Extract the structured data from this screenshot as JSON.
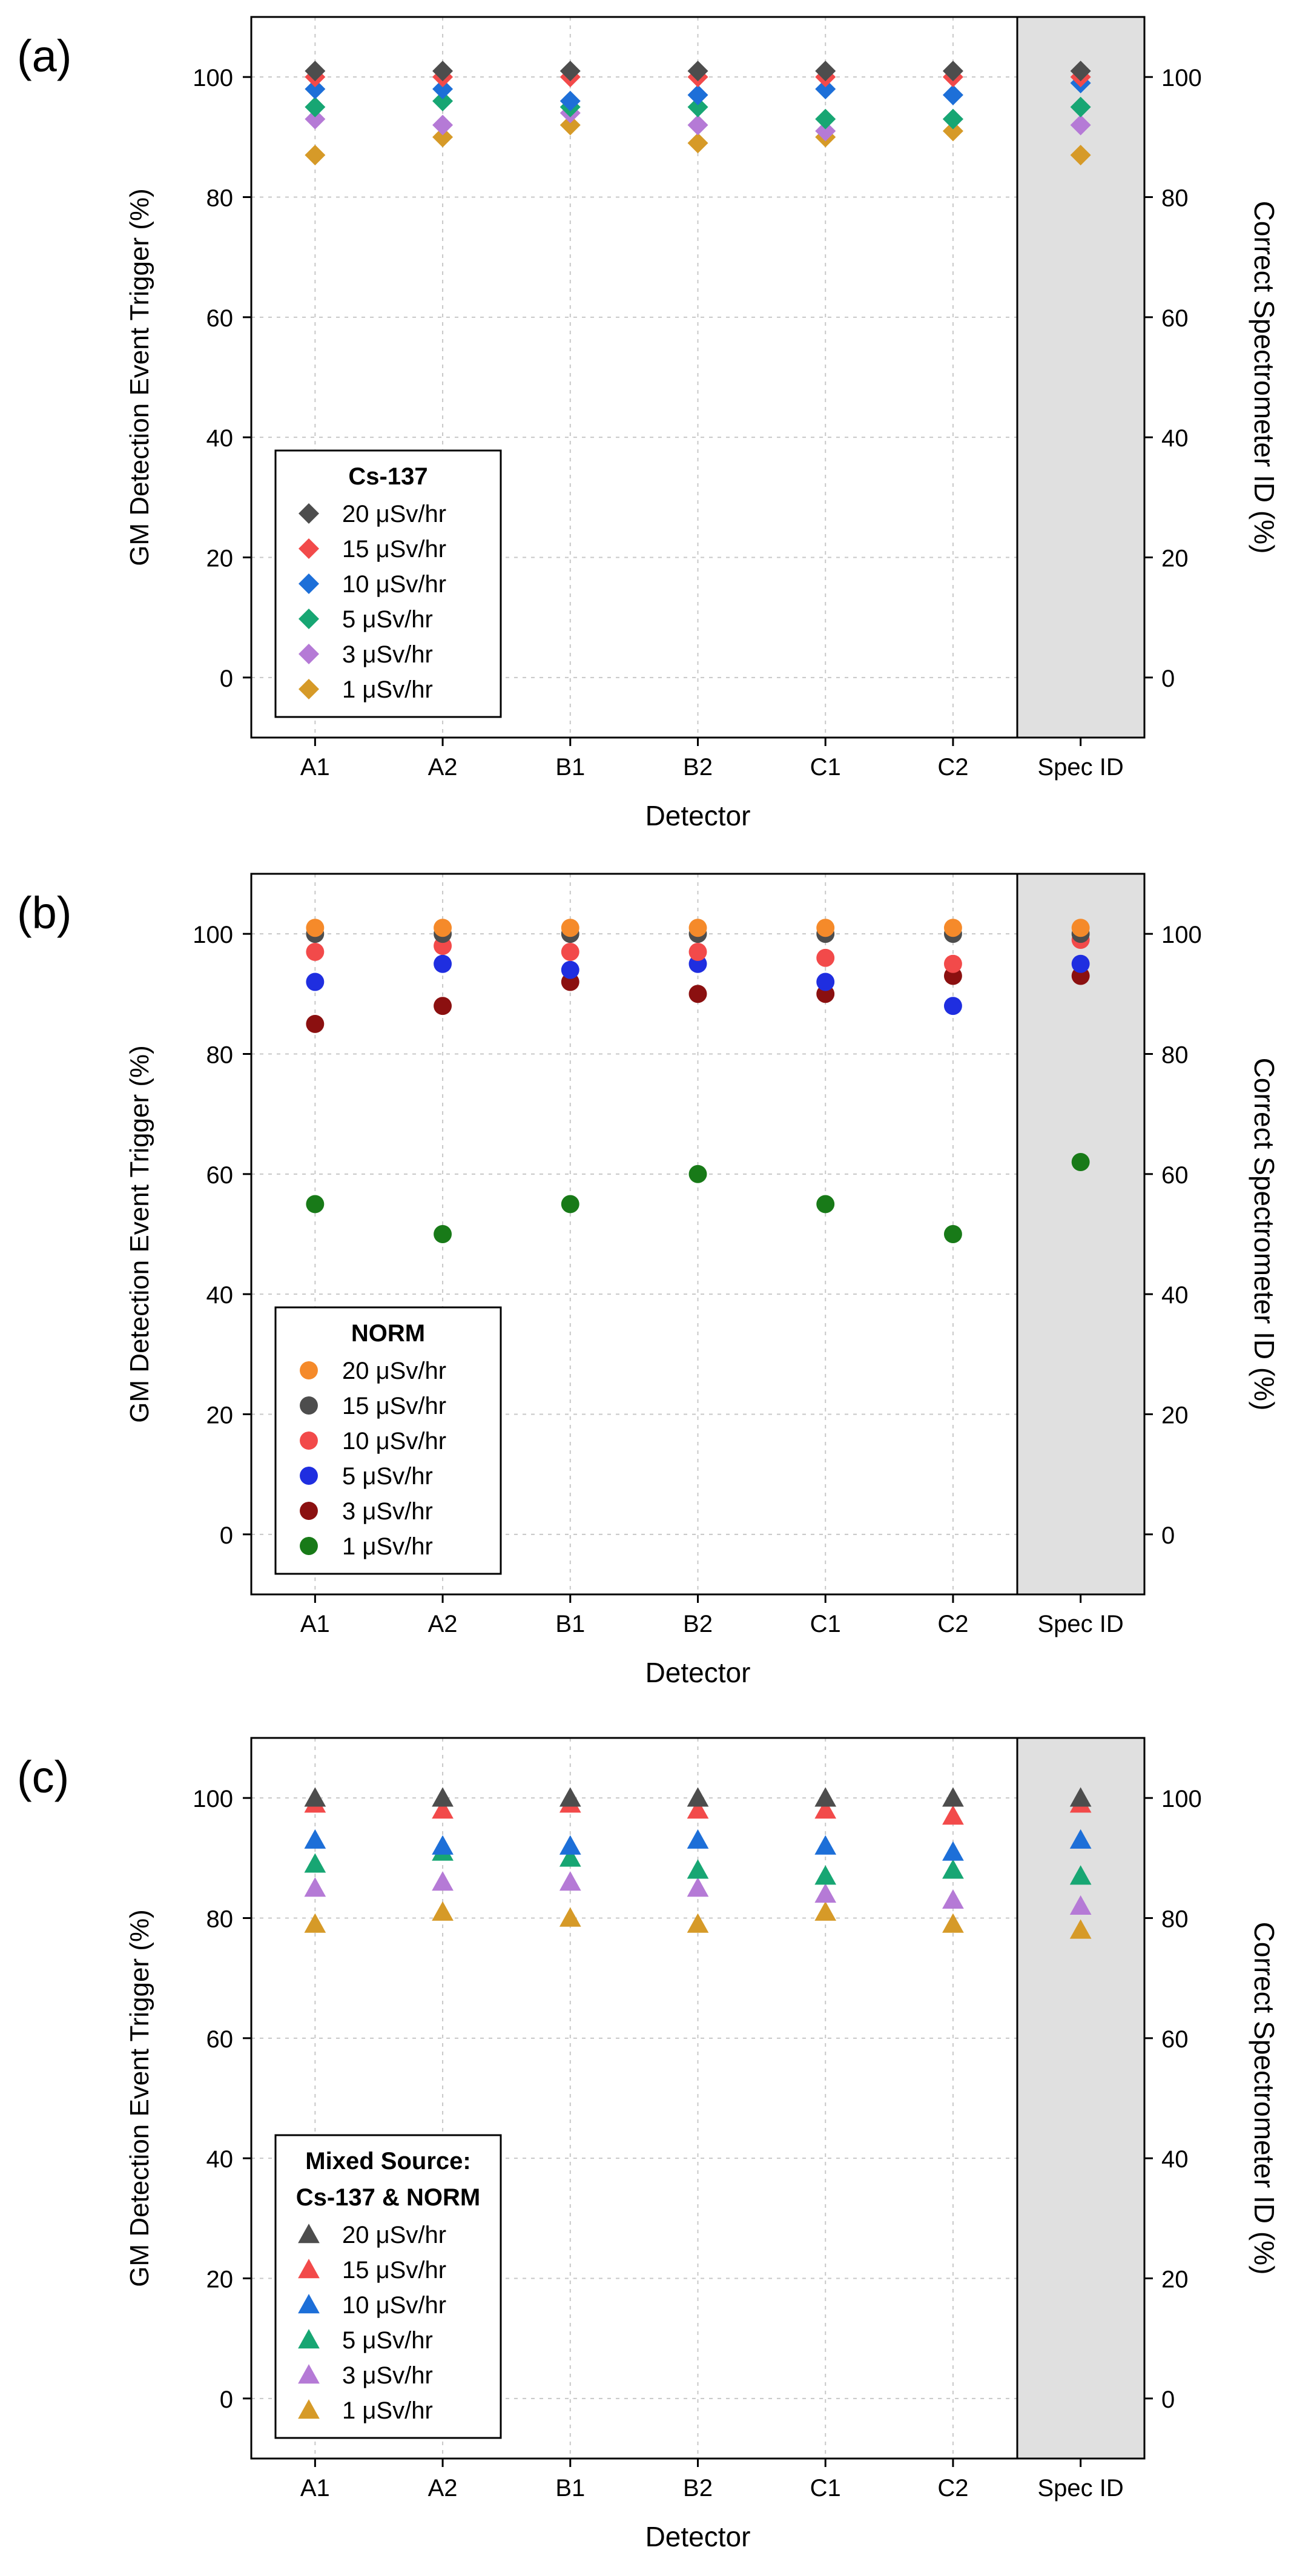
{
  "figure": {
    "background": "#ffffff",
    "spec_band_color": "#e0e0e0",
    "grid_color": "#c8c8c8",
    "frame_color": "#000000"
  },
  "chart_data": [
    {
      "panel_label": "(a)",
      "type": "scatter",
      "marker": "diamond",
      "categories": [
        "A1",
        "A2",
        "B1",
        "B2",
        "C1",
        "C2",
        "Spec ID"
      ],
      "xlabel": "Detector",
      "ylabel": "GM Detection Event Trigger (%)",
      "y2label": "Correct Spectrometer ID (%)",
      "ylim": [
        -10,
        110
      ],
      "yticks": [
        0,
        20,
        40,
        60,
        80,
        100
      ],
      "grid": true,
      "legend_position": "bottom-left",
      "legend_title_lines": [
        "Cs-137"
      ],
      "series": [
        {
          "name": "20 μSv/hr",
          "color": "#4d4d4d",
          "values": [
            101,
            101,
            101,
            101,
            101,
            101,
            101
          ]
        },
        {
          "name": "15 μSv/hr",
          "color": "#f24a4a",
          "values": [
            100,
            100,
            100,
            100,
            100,
            100,
            100
          ]
        },
        {
          "name": "10 μSv/hr",
          "color": "#1d6fd8",
          "values": [
            98,
            98,
            96,
            97,
            98,
            97,
            99
          ]
        },
        {
          "name": "5 μSv/hr",
          "color": "#17a673",
          "values": [
            95,
            96,
            95,
            95,
            93,
            93,
            95
          ]
        },
        {
          "name": "3 μSv/hr",
          "color": "#b57ad6",
          "values": [
            93,
            92,
            94,
            92,
            91,
            93,
            92
          ]
        },
        {
          "name": "1 μSv/hr",
          "color": "#d69a28",
          "values": [
            87,
            90,
            92,
            89,
            90,
            91,
            87
          ]
        }
      ]
    },
    {
      "panel_label": "(b)",
      "type": "scatter",
      "marker": "circle",
      "categories": [
        "A1",
        "A2",
        "B1",
        "B2",
        "C1",
        "C2",
        "Spec ID"
      ],
      "xlabel": "Detector",
      "ylabel": "GM Detection Event Trigger (%)",
      "y2label": "Correct Spectrometer ID (%)",
      "ylim": [
        -10,
        110
      ],
      "yticks": [
        0,
        20,
        40,
        60,
        80,
        100
      ],
      "grid": true,
      "legend_position": "bottom-left",
      "legend_title_lines": [
        "NORM"
      ],
      "series": [
        {
          "name": "20 μSv/hr",
          "color": "#f58a2a",
          "values": [
            101,
            101,
            101,
            101,
            101,
            101,
            101
          ]
        },
        {
          "name": "15 μSv/hr",
          "color": "#4d4d4d",
          "values": [
            100,
            100,
            100,
            100,
            100,
            100,
            100
          ]
        },
        {
          "name": "10 μSv/hr",
          "color": "#f24a4a",
          "values": [
            97,
            98,
            97,
            97,
            96,
            95,
            99
          ]
        },
        {
          "name": "5 μSv/hr",
          "color": "#1f2ee0",
          "values": [
            92,
            95,
            94,
            95,
            92,
            88,
            95
          ]
        },
        {
          "name": "3 μSv/hr",
          "color": "#8b1010",
          "values": [
            85,
            88,
            92,
            90,
            90,
            93,
            93
          ]
        },
        {
          "name": "1 μSv/hr",
          "color": "#187a18",
          "values": [
            55,
            50,
            55,
            60,
            55,
            50,
            62
          ]
        }
      ]
    },
    {
      "panel_label": "(c)",
      "type": "scatter",
      "marker": "triangle",
      "categories": [
        "A1",
        "A2",
        "B1",
        "B2",
        "C1",
        "C2",
        "Spec ID"
      ],
      "xlabel": "Detector",
      "ylabel": "GM Detection Event Trigger (%)",
      "y2label": "Correct Spectrometer ID (%)",
      "ylim": [
        -10,
        110
      ],
      "yticks": [
        0,
        20,
        40,
        60,
        80,
        100
      ],
      "grid": true,
      "legend_position": "bottom-left",
      "legend_title_lines": [
        "Mixed Source:",
        "Cs-137 & NORM"
      ],
      "series": [
        {
          "name": "20 μSv/hr",
          "color": "#4d4d4d",
          "values": [
            100,
            100,
            100,
            100,
            100,
            100,
            100
          ]
        },
        {
          "name": "15 μSv/hr",
          "color": "#f24a4a",
          "values": [
            99,
            98,
            99,
            98,
            98,
            97,
            99
          ]
        },
        {
          "name": "10 μSv/hr",
          "color": "#1d6fd8",
          "values": [
            93,
            92,
            92,
            93,
            92,
            91,
            93
          ]
        },
        {
          "name": "5 μSv/hr",
          "color": "#17a673",
          "values": [
            89,
            91,
            90,
            88,
            87,
            88,
            87
          ]
        },
        {
          "name": "3 μSv/hr",
          "color": "#b57ad6",
          "values": [
            85,
            86,
            86,
            85,
            84,
            83,
            82
          ]
        },
        {
          "name": "1 μSv/hr",
          "color": "#d69a28",
          "values": [
            79,
            81,
            80,
            79,
            81,
            79,
            78
          ]
        }
      ]
    }
  ]
}
